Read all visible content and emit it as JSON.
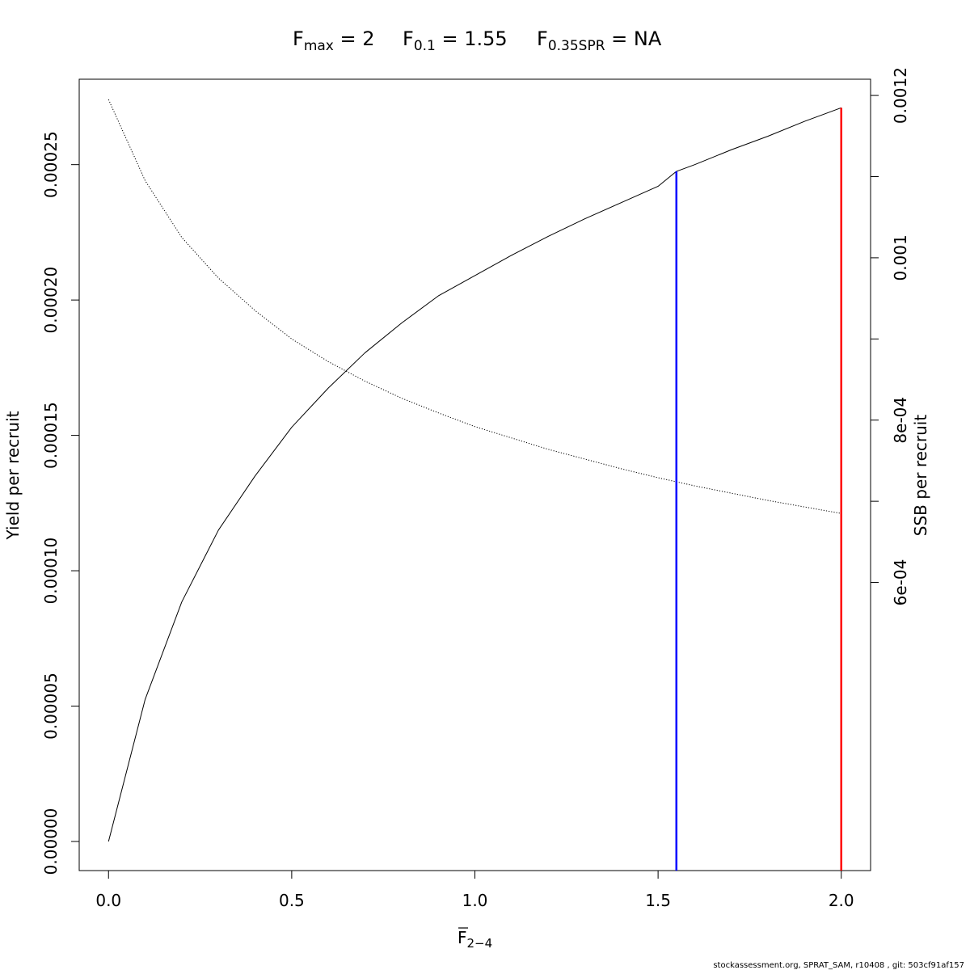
{
  "title": {
    "fmax": {
      "base": "F",
      "sub": "max",
      "rest": " = 2"
    },
    "f01": {
      "base": "F",
      "sub": "0.1",
      "rest": " = 1.55"
    },
    "f035": {
      "base": "F",
      "sub": "0.35SPR",
      "rest": " = NA"
    }
  },
  "footer": "stockassessment.org, SPRAT_SAM, r10408 , git: 503cf91af157",
  "chart_data": {
    "type": "line",
    "xlabel": {
      "base": "F",
      "sub": "2−4"
    },
    "ylabel_left": "Yield per recruit",
    "ylabel_right": "SSB per recruit",
    "xlim": [
      -0.08,
      2.08
    ],
    "ylim_left": [
      -1.075e-05,
      0.00028155
    ],
    "ylim_right": [
      0.000245,
      0.00122
    ],
    "x_ticks": [
      "0.0",
      "0.5",
      "1.0",
      "1.5",
      "2.0"
    ],
    "y_left_ticks": [
      "0.00000",
      "0.00005",
      "0.00010",
      "0.00015",
      "0.00020",
      "0.00025"
    ],
    "y_right_ticks": [
      {
        "value": 0.0006,
        "label": "6e-04"
      },
      {
        "value": 0.0007,
        "label": ""
      },
      {
        "value": 0.0008,
        "label": "8e-04"
      },
      {
        "value": 0.0009,
        "label": ""
      },
      {
        "value": 0.001,
        "label": "0.001"
      },
      {
        "value": 0.0011,
        "label": ""
      },
      {
        "value": 0.0012,
        "label": "0.0012"
      }
    ],
    "series": [
      {
        "axis": "left",
        "style": "solid",
        "color": "#000000",
        "x": [
          0,
          0.1,
          0.2,
          0.3,
          0.4,
          0.5,
          0.6,
          0.7,
          0.8,
          0.9,
          1.0,
          1.1,
          1.2,
          1.3,
          1.4,
          1.5,
          1.55,
          1.6,
          1.7,
          1.8,
          1.9,
          2.0
        ],
        "y": [
          0,
          5.25e-05,
          8.85e-05,
          0.000115,
          0.000135,
          0.000153,
          0.0001675,
          0.0001805,
          0.0001915,
          0.0002015,
          0.000209,
          0.0002165,
          0.0002235,
          0.00023,
          0.000236,
          0.000242,
          0.0002475,
          0.00025,
          0.0002555,
          0.0002605,
          0.000266,
          0.000271
        ]
      },
      {
        "axis": "right",
        "style": "dotted",
        "color": "#000000",
        "x": [
          0,
          0.1,
          0.2,
          0.3,
          0.4,
          0.5,
          0.6,
          0.7,
          0.8,
          0.9,
          1.0,
          1.1,
          1.2,
          1.3,
          1.4,
          1.5,
          1.6,
          1.7,
          1.8,
          1.9,
          2.0
        ],
        "y": [
          0.001195,
          0.001095,
          0.001025,
          0.000975,
          0.000935,
          0.0009,
          0.000872,
          0.000848,
          0.000827,
          0.000809,
          0.000792,
          0.000778,
          0.000764,
          0.000752,
          0.00074,
          0.000729,
          0.000719,
          0.00071,
          0.000701,
          0.000693,
          0.000685
        ]
      }
    ],
    "vlines": [
      {
        "x": 1.55,
        "y_top": 0.0002475,
        "color": "#0000ff"
      },
      {
        "x": 2.0,
        "y_top": 0.000271,
        "color": "#ff0000"
      }
    ]
  }
}
